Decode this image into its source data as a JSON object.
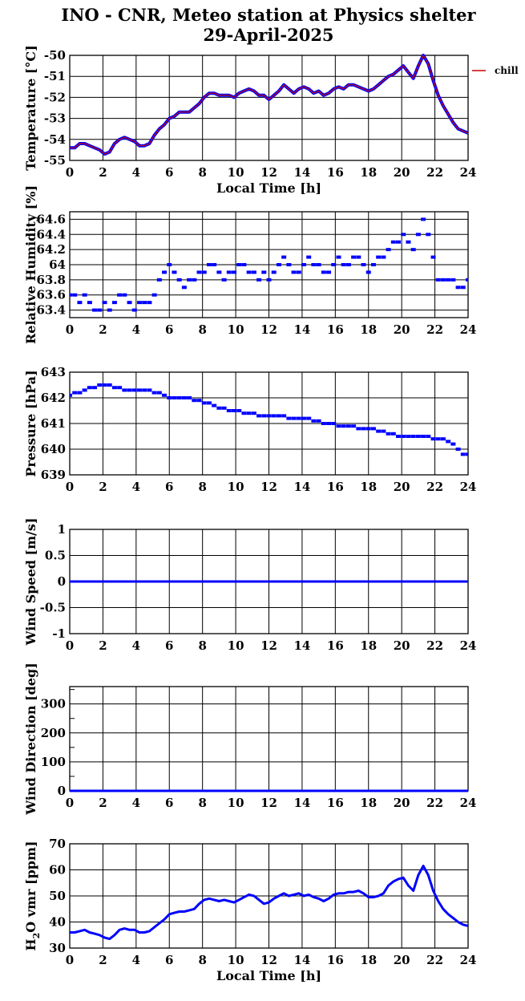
{
  "title_line1": "INO - CNR, Meteo station at Physics shelter",
  "title_line2": "29-April-2025",
  "legend_label": "chill",
  "colors": {
    "data": "#0000ff",
    "chill": "#cc0000",
    "grid": "#000000"
  },
  "chart_data": [
    {
      "type": "line",
      "ylabel": "Temperature [°C]",
      "xlabel": "Local Time [h]",
      "xlim": [
        0,
        24
      ],
      "xticks": [
        0,
        2,
        4,
        6,
        8,
        10,
        12,
        14,
        16,
        18,
        20,
        22,
        24
      ],
      "ylim": [
        -55,
        -50
      ],
      "yticks": [
        -55,
        -54,
        -53,
        -52,
        -51,
        -50
      ],
      "legend": "top-right",
      "series": [
        {
          "name": "",
          "color": "#0000ff",
          "x": [
            0,
            0.3,
            0.6,
            0.9,
            1.2,
            1.5,
            1.8,
            2.1,
            2.4,
            2.7,
            3.0,
            3.3,
            3.6,
            3.9,
            4.2,
            4.5,
            4.8,
            5.1,
            5.4,
            5.7,
            6.0,
            6.3,
            6.6,
            6.9,
            7.2,
            7.5,
            7.8,
            8.1,
            8.4,
            8.7,
            9.0,
            9.3,
            9.6,
            9.9,
            10.2,
            10.5,
            10.8,
            11.1,
            11.4,
            11.7,
            12.0,
            12.3,
            12.6,
            12.9,
            13.2,
            13.5,
            13.8,
            14.1,
            14.4,
            14.7,
            15.0,
            15.3,
            15.6,
            15.9,
            16.2,
            16.5,
            16.8,
            17.1,
            17.4,
            17.7,
            18.0,
            18.3,
            18.6,
            18.9,
            19.2,
            19.5,
            19.8,
            20.1,
            20.4,
            20.7,
            21.0,
            21.3,
            21.6,
            21.9,
            22.2,
            22.5,
            22.8,
            23.1,
            23.4,
            23.7,
            24.0
          ],
          "y": [
            -54.4,
            -54.4,
            -54.2,
            -54.2,
            -54.3,
            -54.4,
            -54.5,
            -54.7,
            -54.6,
            -54.2,
            -54.0,
            -53.9,
            -54.0,
            -54.1,
            -54.3,
            -54.3,
            -54.2,
            -53.8,
            -53.5,
            -53.3,
            -53.0,
            -52.9,
            -52.7,
            -52.7,
            -52.7,
            -52.5,
            -52.3,
            -52.0,
            -51.8,
            -51.8,
            -51.9,
            -51.9,
            -51.9,
            -52.0,
            -51.8,
            -51.7,
            -51.6,
            -51.7,
            -51.9,
            -51.9,
            -52.1,
            -51.9,
            -51.7,
            -51.4,
            -51.6,
            -51.8,
            -51.6,
            -51.5,
            -51.6,
            -51.8,
            -51.7,
            -51.9,
            -51.8,
            -51.6,
            -51.5,
            -51.6,
            -51.4,
            -51.4,
            -51.5,
            -51.6,
            -51.7,
            -51.6,
            -51.4,
            -51.2,
            -51.0,
            -50.9,
            -50.7,
            -50.5,
            -50.8,
            -51.1,
            -50.5,
            -50.0,
            -50.4,
            -51.2,
            -51.9,
            -52.4,
            -52.8,
            -53.2,
            -53.5,
            -53.6,
            -53.7
          ]
        },
        {
          "name": "chill",
          "color": "#cc0000",
          "x": [
            0,
            0.3,
            0.6,
            0.9,
            1.2,
            1.5,
            1.8,
            2.1,
            2.4,
            2.7,
            3.0,
            3.3,
            3.6,
            3.9,
            4.2,
            4.5,
            4.8,
            5.1,
            5.4,
            5.7,
            6.0,
            6.3,
            6.6,
            6.9,
            7.2,
            7.5,
            7.8,
            8.1,
            8.4,
            8.7,
            9.0,
            9.3,
            9.6,
            9.9,
            10.2,
            10.5,
            10.8,
            11.1,
            11.4,
            11.7,
            12.0,
            12.3,
            12.6,
            12.9,
            13.2,
            13.5,
            13.8,
            14.1,
            14.4,
            14.7,
            15.0,
            15.3,
            15.6,
            15.9,
            16.2,
            16.5,
            16.8,
            17.1,
            17.4,
            17.7,
            18.0,
            18.3,
            18.6,
            18.9,
            19.2,
            19.5,
            19.8,
            20.1,
            20.4,
            20.7,
            21.0,
            21.3,
            21.6,
            21.9,
            22.2,
            22.5,
            22.8,
            23.1,
            23.4,
            23.7,
            24.0
          ],
          "y": [
            -54.4,
            -54.4,
            -54.2,
            -54.2,
            -54.3,
            -54.4,
            -54.5,
            -54.7,
            -54.6,
            -54.2,
            -54.0,
            -53.9,
            -54.0,
            -54.1,
            -54.3,
            -54.3,
            -54.2,
            -53.8,
            -53.5,
            -53.3,
            -53.0,
            -52.9,
            -52.7,
            -52.7,
            -52.7,
            -52.5,
            -52.3,
            -52.0,
            -51.8,
            -51.8,
            -51.9,
            -51.9,
            -51.9,
            -52.0,
            -51.8,
            -51.7,
            -51.6,
            -51.7,
            -51.9,
            -51.9,
            -52.1,
            -51.9,
            -51.7,
            -51.4,
            -51.6,
            -51.8,
            -51.6,
            -51.5,
            -51.6,
            -51.8,
            -51.7,
            -51.9,
            -51.8,
            -51.6,
            -51.5,
            -51.6,
            -51.4,
            -51.4,
            -51.5,
            -51.6,
            -51.7,
            -51.6,
            -51.4,
            -51.2,
            -51.0,
            -50.9,
            -50.7,
            -50.5,
            -50.8,
            -51.1,
            -50.5,
            -50.0,
            -50.4,
            -51.2,
            -51.9,
            -52.4,
            -52.8,
            -53.2,
            -53.5,
            -53.6,
            -53.7
          ]
        }
      ]
    },
    {
      "type": "scatter",
      "ylabel": "Relative Humidity [%]",
      "xlim": [
        0,
        24
      ],
      "xticks": [
        0,
        2,
        4,
        6,
        8,
        10,
        12,
        14,
        16,
        18,
        20,
        22,
        24
      ],
      "ylim": [
        63.3,
        64.7
      ],
      "yticks": [
        63.4,
        63.6,
        63.8,
        64,
        64.2,
        64.4,
        64.6
      ],
      "yticklabels": [
        "63.4",
        "63.6",
        "63.8",
        "64",
        "64.2",
        "64.4",
        "64.6"
      ],
      "series": [
        {
          "name": "",
          "color": "#0000ff",
          "x": [
            0,
            0.3,
            0.6,
            0.9,
            1.2,
            1.5,
            1.8,
            2.1,
            2.4,
            2.7,
            3.0,
            3.3,
            3.6,
            3.9,
            4.2,
            4.5,
            4.8,
            5.1,
            5.4,
            5.7,
            6.0,
            6.3,
            6.6,
            6.9,
            7.2,
            7.5,
            7.8,
            8.1,
            8.4,
            8.7,
            9.0,
            9.3,
            9.6,
            9.9,
            10.2,
            10.5,
            10.8,
            11.1,
            11.4,
            11.7,
            12.0,
            12.3,
            12.6,
            12.9,
            13.2,
            13.5,
            13.8,
            14.1,
            14.4,
            14.7,
            15.0,
            15.3,
            15.6,
            15.9,
            16.2,
            16.5,
            16.8,
            17.1,
            17.4,
            17.7,
            18.0,
            18.3,
            18.6,
            18.9,
            19.2,
            19.5,
            19.8,
            20.1,
            20.4,
            20.7,
            21.0,
            21.3,
            21.6,
            21.9,
            22.2,
            22.5,
            22.8,
            23.1,
            23.4,
            23.7,
            24.0
          ],
          "y": [
            63.6,
            63.6,
            63.5,
            63.6,
            63.5,
            63.4,
            63.4,
            63.5,
            63.4,
            63.5,
            63.6,
            63.6,
            63.5,
            63.4,
            63.5,
            63.5,
            63.5,
            63.6,
            63.8,
            63.9,
            64.0,
            63.9,
            63.8,
            63.7,
            63.8,
            63.8,
            63.9,
            63.9,
            64.0,
            64.0,
            63.9,
            63.8,
            63.9,
            63.9,
            64.0,
            64.0,
            63.9,
            63.9,
            63.8,
            63.9,
            63.8,
            63.9,
            64.0,
            64.1,
            64.0,
            63.9,
            63.9,
            64.0,
            64.1,
            64.0,
            64.0,
            63.9,
            63.9,
            64.0,
            64.1,
            64.0,
            64.0,
            64.1,
            64.1,
            64.0,
            63.9,
            64.0,
            64.1,
            64.1,
            64.2,
            64.3,
            64.3,
            64.4,
            64.3,
            64.2,
            64.4,
            64.6,
            64.4,
            64.1,
            63.8,
            63.8,
            63.8,
            63.8,
            63.7,
            63.7,
            63.8
          ]
        }
      ]
    },
    {
      "type": "scatter",
      "ylabel": "Pressure [hPa]",
      "xlim": [
        0,
        24
      ],
      "xticks": [
        0,
        2,
        4,
        6,
        8,
        10,
        12,
        14,
        16,
        18,
        20,
        22,
        24
      ],
      "ylim": [
        639,
        643
      ],
      "yticks": [
        639,
        640,
        641,
        642,
        643
      ],
      "series": [
        {
          "name": "",
          "color": "#0000ff",
          "x": [
            0,
            0.3,
            0.6,
            0.9,
            1.2,
            1.5,
            1.8,
            2.1,
            2.4,
            2.7,
            3.0,
            3.3,
            3.6,
            3.9,
            4.2,
            4.5,
            4.8,
            5.1,
            5.4,
            5.7,
            6.0,
            6.3,
            6.6,
            6.9,
            7.2,
            7.5,
            7.8,
            8.1,
            8.4,
            8.7,
            9.0,
            9.3,
            9.6,
            9.9,
            10.2,
            10.5,
            10.8,
            11.1,
            11.4,
            11.7,
            12.0,
            12.3,
            12.6,
            12.9,
            13.2,
            13.5,
            13.8,
            14.1,
            14.4,
            14.7,
            15.0,
            15.3,
            15.6,
            15.9,
            16.2,
            16.5,
            16.8,
            17.1,
            17.4,
            17.7,
            18.0,
            18.3,
            18.6,
            18.9,
            19.2,
            19.5,
            19.8,
            20.1,
            20.4,
            20.7,
            21.0,
            21.3,
            21.6,
            21.9,
            22.2,
            22.5,
            22.8,
            23.1,
            23.4,
            23.7,
            24.0
          ],
          "y": [
            642.1,
            642.2,
            642.2,
            642.3,
            642.4,
            642.4,
            642.5,
            642.5,
            642.5,
            642.4,
            642.4,
            642.3,
            642.3,
            642.3,
            642.3,
            642.3,
            642.3,
            642.2,
            642.2,
            642.1,
            642.0,
            642.0,
            642.0,
            642.0,
            642.0,
            641.9,
            641.9,
            641.8,
            641.8,
            641.7,
            641.6,
            641.6,
            641.5,
            641.5,
            641.5,
            641.4,
            641.4,
            641.4,
            641.3,
            641.3,
            641.3,
            641.3,
            641.3,
            641.3,
            641.2,
            641.2,
            641.2,
            641.2,
            641.2,
            641.1,
            641.1,
            641.0,
            641.0,
            641.0,
            640.9,
            640.9,
            640.9,
            640.9,
            640.8,
            640.8,
            640.8,
            640.8,
            640.7,
            640.7,
            640.6,
            640.6,
            640.5,
            640.5,
            640.5,
            640.5,
            640.5,
            640.5,
            640.5,
            640.4,
            640.4,
            640.4,
            640.3,
            640.2,
            640.0,
            639.8,
            639.8
          ]
        }
      ]
    },
    {
      "type": "line",
      "ylabel": "Wind Speed [m/s]",
      "xlim": [
        0,
        24
      ],
      "xticks": [
        0,
        2,
        4,
        6,
        8,
        10,
        12,
        14,
        16,
        18,
        20,
        22,
        24
      ],
      "ylim": [
        -1,
        1
      ],
      "yticks": [
        -1,
        -0.5,
        0,
        0.5,
        1
      ],
      "yticklabels": [
        "-1",
        "-0.5",
        "0",
        "0.5",
        "1"
      ],
      "series": [
        {
          "name": "",
          "color": "#0000ff",
          "x": [
            0,
            24
          ],
          "y": [
            0,
            0
          ]
        }
      ]
    },
    {
      "type": "line",
      "ylabel": "Wind Direction [deg]",
      "xlim": [
        0,
        24
      ],
      "xticks": [
        0,
        2,
        4,
        6,
        8,
        10,
        12,
        14,
        16,
        18,
        20,
        22,
        24
      ],
      "ylim": [
        0,
        360
      ],
      "yticks": [
        0,
        100,
        200,
        300
      ],
      "yminor": [
        50,
        150,
        250,
        350
      ],
      "series": [
        {
          "name": "",
          "color": "#0000ff",
          "x": [
            0,
            24
          ],
          "y": [
            0,
            0
          ]
        }
      ]
    },
    {
      "type": "line",
      "ylabel": "H2O vmr [ppm]",
      "ylabel_main": "H",
      "ylabel_sub": "2",
      "ylabel_rest": "O vmr [ppm]",
      "xlabel": "Local Time [h]",
      "xlim": [
        0,
        24
      ],
      "xticks": [
        0,
        2,
        4,
        6,
        8,
        10,
        12,
        14,
        16,
        18,
        20,
        22,
        24
      ],
      "ylim": [
        30,
        70
      ],
      "yticks": [
        30,
        40,
        50,
        60,
        70
      ],
      "series": [
        {
          "name": "",
          "color": "#0000ff",
          "x": [
            0,
            0.3,
            0.6,
            0.9,
            1.2,
            1.5,
            1.8,
            2.1,
            2.4,
            2.7,
            3.0,
            3.3,
            3.6,
            3.9,
            4.2,
            4.5,
            4.8,
            5.1,
            5.4,
            5.7,
            6.0,
            6.3,
            6.6,
            6.9,
            7.2,
            7.5,
            7.8,
            8.1,
            8.4,
            8.7,
            9.0,
            9.3,
            9.6,
            9.9,
            10.2,
            10.5,
            10.8,
            11.1,
            11.4,
            11.7,
            12.0,
            12.3,
            12.6,
            12.9,
            13.2,
            13.5,
            13.8,
            14.1,
            14.4,
            14.7,
            15.0,
            15.3,
            15.6,
            15.9,
            16.2,
            16.5,
            16.8,
            17.1,
            17.4,
            17.7,
            18.0,
            18.3,
            18.6,
            18.9,
            19.2,
            19.5,
            19.8,
            20.1,
            20.4,
            20.7,
            21.0,
            21.3,
            21.6,
            21.9,
            22.2,
            22.5,
            22.8,
            23.1,
            23.4,
            23.7,
            24.0
          ],
          "y": [
            36,
            36,
            36.5,
            37,
            36,
            35.5,
            35,
            34,
            33.5,
            35,
            37,
            37.5,
            37,
            37,
            36,
            36,
            36.5,
            38,
            39.5,
            41,
            43,
            43.5,
            44,
            44,
            44.5,
            45,
            47,
            48.5,
            49,
            48.5,
            48,
            48.5,
            48,
            47.5,
            48.5,
            49.5,
            50.5,
            50,
            48.5,
            47,
            47.5,
            49,
            50,
            51,
            50,
            50.5,
            51,
            50,
            50.5,
            49.5,
            49,
            48,
            49,
            50.5,
            51,
            51,
            51.5,
            51.5,
            52,
            51,
            49.5,
            49.5,
            50,
            51,
            54,
            55.5,
            56.5,
            57,
            54,
            52,
            58,
            61.5,
            58,
            52,
            48,
            45,
            43,
            41.5,
            40,
            39,
            38.5
          ]
        }
      ]
    }
  ]
}
